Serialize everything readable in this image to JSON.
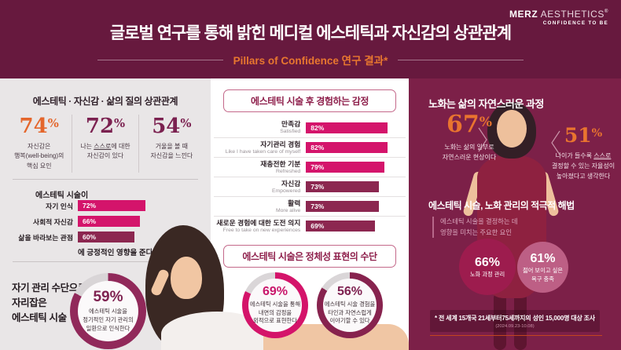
{
  "header": {
    "title": "글로벌 연구를 통해 밝힌 메디컬 에스테틱과 자신감의 상관관계",
    "subtitle": "Pillars of Confidence 연구 결과*"
  },
  "logo": {
    "brand_bold": "MERZ",
    "brand_light": " AESTHETICS",
    "reg": "®",
    "tagline": "CONFIDENCE TO BE"
  },
  "left": {
    "correlation": {
      "title": "에스테틱 · 자신감 · 삶의 질의 상관관계",
      "stats": [
        {
          "value": "74",
          "suffix": "%",
          "caption": "자신감은\n행복(well-being)의\n핵심 요인"
        },
        {
          "value": "72",
          "suffix": "%",
          "caption_pre": "나는 ",
          "caption_underline": "스스로",
          "caption_post": "에 대한\n자신감이 있다"
        },
        {
          "value": "54",
          "suffix": "%",
          "caption": "거울을 볼 때\n자신감을 느낀다"
        }
      ]
    },
    "impact": {
      "lead": "에스테틱 시술이",
      "bars": [
        {
          "label": "자기 인식",
          "value": "72%",
          "pct": 72
        },
        {
          "label": "사회적 자신감",
          "value": "66%",
          "pct": 66
        },
        {
          "label": "삶을 바라보는 관점",
          "value": "60%",
          "pct": 60
        }
      ],
      "tail": "에 긍정적인 영향을 준다."
    },
    "selfcare": {
      "title": "자기 관리 수단으로\n자리잡은\n에스테틱 시술",
      "donut": {
        "value": "59%",
        "pct": 59,
        "caption": "에스테틱 시술을\n정기적인 자기 관리의\n일환으로 인식한다"
      }
    }
  },
  "middle": {
    "emotions": {
      "title": "에스테틱 시술 후 경험하는 감정",
      "bars": [
        {
          "label": "만족감",
          "sublabel": "Satisfied",
          "value": "82%",
          "pct": 82
        },
        {
          "label": "자기관리 경험",
          "sublabel": "Like I have taken care of myself",
          "value": "82%",
          "pct": 82
        },
        {
          "label": "재충전한 기분",
          "sublabel": "Refreshed",
          "value": "79%",
          "pct": 79
        },
        {
          "label": "자신감",
          "sublabel": "Empowered",
          "value": "73%",
          "pct": 73
        },
        {
          "label": "활력",
          "sublabel": "More alive",
          "value": "73%",
          "pct": 73
        },
        {
          "label": "새로운 경험에 대한 도전 의지",
          "sublabel": "Free to take on new experiences",
          "value": "69%",
          "pct": 69
        }
      ]
    },
    "identity": {
      "title": "에스테틱 시술은 정체성 표현의 수단",
      "donuts": [
        {
          "value": "69%",
          "pct": 69,
          "caption": "에스테틱 시술을 통해\n내면의 감정을\n외적으로 표현한다"
        },
        {
          "value": "56%",
          "pct": 56,
          "caption": "에스테틱 시술 경험을\n타인과 자연스럽게\n이야기할 수 있다"
        }
      ]
    }
  },
  "right": {
    "aging": {
      "title": "노화는 삶의 자연스러운 과정",
      "stat1": {
        "value": "67",
        "suffix": "%",
        "caption": "노화는 삶의 일부로\n자연스러운 현상이다"
      },
      "stat2": {
        "value": "51",
        "suffix": "%",
        "caption_pre": "나이가 들수록 ",
        "caption_underline": "스스로",
        "caption_post": "\n결정할 수 있는 자율성이\n높아졌다고 생각한다"
      }
    },
    "solution": {
      "title": "에스테틱 시술, 노화 관리의 적극적 해법",
      "subtitle": "에스테틱 시술을 결정하는 데\n영향을 미치는 주요한 요인",
      "circles": [
        {
          "value": "66%",
          "label": "노화 과정 관리"
        },
        {
          "value": "61%",
          "label": "젊어 보이고 싶은\n욕구 충족"
        }
      ]
    },
    "footnote": {
      "text": "* 전 세계 15개국 21세부터75세까지의 성인 15,000명 대상 조사",
      "date": "(2024.09.23-10.08)"
    }
  },
  "colors": {
    "header_bg": "#67193E",
    "right_panel_bg": "#7C2048",
    "left_panel_bg": "#E9E6E7",
    "accent_orange": "#E8772F",
    "plum": "#7B2150",
    "bar_magenta": "#D4146B",
    "bar_dark_maroon": "#8C2750",
    "circle_dark": "#9D1C4E",
    "circle_light": "#BD5F85",
    "footnote_line": "#C2451E"
  },
  "chart_data": [
    {
      "type": "bar",
      "title": "에스테틱 · 자신감 · 삶의 질의 상관관계",
      "categories": [
        "자신감은 행복(well-being)의 핵심 요인",
        "나는 스스로에 대한 자신감이 있다",
        "거울을 볼 때 자신감을 느낀다"
      ],
      "values": [
        74,
        72,
        54
      ],
      "unit": "%"
    },
    {
      "type": "bar",
      "title": "에스테틱 시술이 긍정적인 영향을 준다",
      "categories": [
        "자기 인식",
        "사회적 자신감",
        "삶을 바라보는 관점"
      ],
      "values": [
        72,
        66,
        60
      ],
      "unit": "%",
      "xlim": [
        0,
        100
      ],
      "orientation": "horizontal"
    },
    {
      "type": "pie",
      "title": "에스테틱 시술을 정기적인 자기 관리의 일환으로 인식한다",
      "labels": [
        "인식한다",
        "기타"
      ],
      "values": [
        59,
        41
      ]
    },
    {
      "type": "bar",
      "title": "에스테틱 시술 후 경험하는 감정",
      "categories": [
        "만족감 (Satisfied)",
        "자기관리 경험 (Like I have taken care of myself)",
        "재충전한 기분 (Refreshed)",
        "자신감 (Empowered)",
        "활력 (More alive)",
        "새로운 경험에 대한 도전 의지 (Free to take on new experiences)"
      ],
      "values": [
        82,
        82,
        79,
        73,
        73,
        69
      ],
      "unit": "%",
      "xlim": [
        0,
        100
      ],
      "orientation": "horizontal"
    },
    {
      "type": "pie",
      "title": "에스테틱 시술을 통해 내면의 감정을 외적으로 표현한다",
      "labels": [
        "표현한다",
        "기타"
      ],
      "values": [
        69,
        31
      ]
    },
    {
      "type": "pie",
      "title": "에스테틱 시술 경험을 타인과 자연스럽게 이야기할 수 있다",
      "labels": [
        "이야기할 수 있다",
        "기타"
      ],
      "values": [
        56,
        44
      ]
    },
    {
      "type": "bar",
      "title": "노화는 삶의 자연스러운 과정",
      "categories": [
        "노화는 삶의 일부로 자연스러운 현상이다",
        "나이가 들수록 스스로 결정할 수 있는 자율성이 높아졌다고 생각한다"
      ],
      "values": [
        67,
        51
      ],
      "unit": "%"
    },
    {
      "type": "bar",
      "title": "에스테틱 시술을 결정하는 데 영향을 미치는 주요한 요인",
      "categories": [
        "노화 과정 관리",
        "젊어 보이고 싶은 욕구 충족"
      ],
      "values": [
        66,
        61
      ],
      "unit": "%"
    }
  ]
}
